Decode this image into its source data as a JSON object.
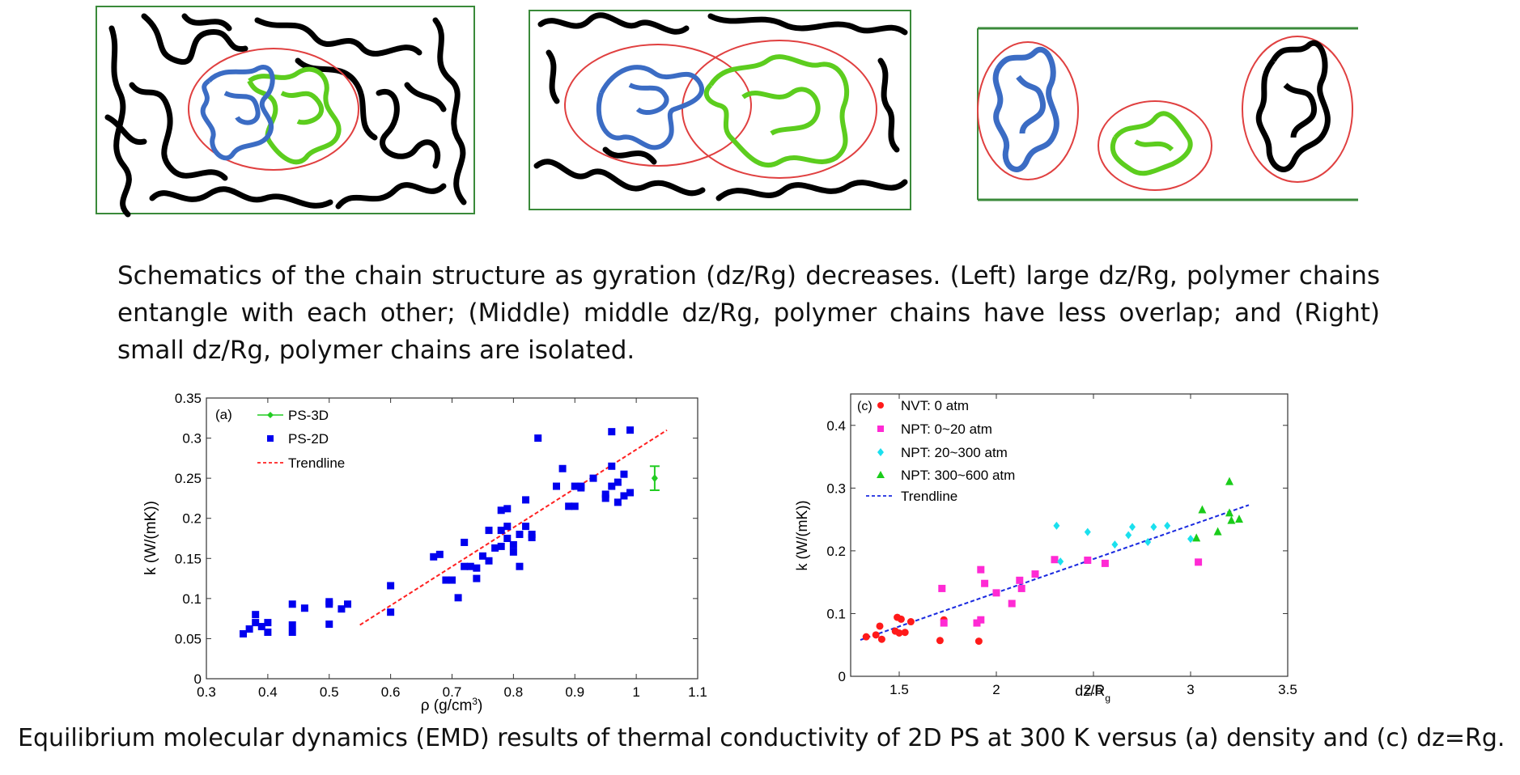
{
  "schematic": {
    "captions": {
      "top": "Schematics of the chain structure as gyration (dz/Rg) decreases. (Left) large dz/Rg, polymer chains entangle with each other; (Middle) middle dz/Rg, polymer chains have less overlap; and (Right) small dz/Rg, polymer chains are isolated.",
      "bottom": "Equilibrium molecular dynamics (EMD) results of thermal conductivity of 2D PS at 300 K versus (a) density and (c) dz=Rg."
    },
    "colors": {
      "box": "#3a8a3a",
      "ellipse": "#e04040",
      "blue_chain": "#3b6cc4",
      "green_chain": "#5ccd1e",
      "black_chain": "#000000"
    }
  },
  "chart_data": [
    {
      "type": "scatter",
      "panel_label": "(a)",
      "xlabel": "ρ (g/cm³)",
      "ylabel": "k (W/(mK))",
      "xlim": [
        0.3,
        1.1
      ],
      "ylim": [
        0,
        0.35
      ],
      "xticks": [
        "0.3",
        "0.4",
        "0.5",
        "0.6",
        "0.7",
        "0.8",
        "0.9",
        "1",
        "1.1"
      ],
      "yticks": [
        "0",
        "0.05",
        "0.1",
        "0.15",
        "0.2",
        "0.25",
        "0.3",
        "0.35"
      ],
      "legend_position": "top-left",
      "legend": [
        "PS-3D",
        "PS-2D",
        "Trendline"
      ],
      "series": [
        {
          "name": "PS-3D",
          "color": "#22cc22",
          "marker": "diamond-errorbar",
          "points": [
            [
              1.03,
              0.25
            ]
          ],
          "error": [
            0.015
          ]
        },
        {
          "name": "PS-2D",
          "color": "#0000ee",
          "marker": "square",
          "points": [
            [
              0.36,
              0.056
            ],
            [
              0.37,
              0.062
            ],
            [
              0.38,
              0.07
            ],
            [
              0.38,
              0.08
            ],
            [
              0.39,
              0.065
            ],
            [
              0.4,
              0.058
            ],
            [
              0.4,
              0.07
            ],
            [
              0.44,
              0.058
            ],
            [
              0.44,
              0.067
            ],
            [
              0.44,
              0.093
            ],
            [
              0.46,
              0.088
            ],
            [
              0.5,
              0.068
            ],
            [
              0.5,
              0.093
            ],
            [
              0.5,
              0.096
            ],
            [
              0.52,
              0.087
            ],
            [
              0.53,
              0.093
            ],
            [
              0.6,
              0.083
            ],
            [
              0.6,
              0.116
            ],
            [
              0.67,
              0.152
            ],
            [
              0.68,
              0.155
            ],
            [
              0.69,
              0.123
            ],
            [
              0.7,
              0.123
            ],
            [
              0.71,
              0.101
            ],
            [
              0.72,
              0.14
            ],
            [
              0.72,
              0.17
            ],
            [
              0.73,
              0.14
            ],
            [
              0.74,
              0.138
            ],
            [
              0.74,
              0.125
            ],
            [
              0.75,
              0.153
            ],
            [
              0.76,
              0.147
            ],
            [
              0.76,
              0.185
            ],
            [
              0.77,
              0.163
            ],
            [
              0.78,
              0.165
            ],
            [
              0.78,
              0.185
            ],
            [
              0.78,
              0.21
            ],
            [
              0.79,
              0.19
            ],
            [
              0.79,
              0.212
            ],
            [
              0.79,
              0.175
            ],
            [
              0.8,
              0.167
            ],
            [
              0.8,
              0.158
            ],
            [
              0.81,
              0.18
            ],
            [
              0.81,
              0.14
            ],
            [
              0.82,
              0.223
            ],
            [
              0.83,
              0.18
            ],
            [
              0.83,
              0.176
            ],
            [
              0.84,
              0.3
            ],
            [
              0.82,
              0.19
            ],
            [
              0.87,
              0.24
            ],
            [
              0.88,
              0.262
            ],
            [
              0.89,
              0.215
            ],
            [
              0.9,
              0.215
            ],
            [
              0.9,
              0.24
            ],
            [
              0.91,
              0.24
            ],
            [
              0.91,
              0.238
            ],
            [
              0.93,
              0.25
            ],
            [
              0.95,
              0.225
            ],
            [
              0.95,
              0.23
            ],
            [
              0.96,
              0.24
            ],
            [
              0.96,
              0.265
            ],
            [
              0.96,
              0.308
            ],
            [
              0.97,
              0.22
            ],
            [
              0.97,
              0.245
            ],
            [
              0.98,
              0.255
            ],
            [
              0.98,
              0.228
            ],
            [
              0.99,
              0.232
            ],
            [
              0.99,
              0.31
            ]
          ]
        },
        {
          "name": "Trendline",
          "color": "#ff2020",
          "style": "dashed",
          "points": [
            [
              0.55,
              0.067
            ],
            [
              1.05,
              0.31
            ]
          ]
        }
      ]
    },
    {
      "type": "scatter",
      "panel_label": "(c)",
      "xlabel": "dz/R",
      "xlabel_subscript": "g",
      "ylabel": "k (W/(mK))",
      "xlim": [
        1.25,
        3.5
      ],
      "ylim": [
        0,
        0.45
      ],
      "xticks": [
        "1.5",
        "2",
        "2.5",
        "3",
        "3.5"
      ],
      "yticks": [
        "0",
        "0.1",
        "0.2",
        "0.3",
        "0.4"
      ],
      "legend_position": "top-left",
      "legend": [
        "NVT: 0 atm",
        "NPT: 0~20 atm",
        "NPT: 20~300 atm",
        "NPT: 300~600 atm",
        "Trendline"
      ],
      "series": [
        {
          "name": "NVT: 0 atm",
          "color": "#ff1a1a",
          "marker": "circle",
          "points": [
            [
              1.33,
              0.063
            ],
            [
              1.38,
              0.066
            ],
            [
              1.4,
              0.08
            ],
            [
              1.41,
              0.059
            ],
            [
              1.48,
              0.072
            ],
            [
              1.49,
              0.094
            ],
            [
              1.5,
              0.069
            ],
            [
              1.51,
              0.091
            ],
            [
              1.53,
              0.07
            ],
            [
              1.56,
              0.087
            ],
            [
              1.71,
              0.057
            ],
            [
              1.73,
              0.09
            ],
            [
              1.91,
              0.056
            ]
          ]
        },
        {
          "name": "NPT: 0~20 atm",
          "color": "#ff2ad4",
          "marker": "square",
          "points": [
            [
              1.72,
              0.14
            ],
            [
              1.73,
              0.085
            ],
            [
              1.9,
              0.085
            ],
            [
              1.92,
              0.09
            ],
            [
              1.92,
              0.17
            ],
            [
              1.94,
              0.148
            ],
            [
              2.0,
              0.133
            ],
            [
              2.08,
              0.116
            ],
            [
              2.12,
              0.153
            ],
            [
              2.13,
              0.14
            ],
            [
              2.2,
              0.163
            ],
            [
              2.3,
              0.186
            ],
            [
              2.47,
              0.185
            ],
            [
              2.56,
              0.18
            ],
            [
              3.04,
              0.182
            ]
          ]
        },
        {
          "name": "NPT: 20~300 atm",
          "color": "#1ae0ee",
          "marker": "diamond",
          "points": [
            [
              2.31,
              0.24
            ],
            [
              2.33,
              0.183
            ],
            [
              2.47,
              0.23
            ],
            [
              2.61,
              0.21
            ],
            [
              2.68,
              0.225
            ],
            [
              2.7,
              0.238
            ],
            [
              2.78,
              0.214
            ],
            [
              2.81,
              0.238
            ],
            [
              2.88,
              0.24
            ],
            [
              3.0,
              0.219
            ]
          ]
        },
        {
          "name": "NPT: 300~600 atm",
          "color": "#1acc1a",
          "marker": "triangle",
          "points": [
            [
              3.03,
              0.22
            ],
            [
              3.06,
              0.265
            ],
            [
              3.14,
              0.23
            ],
            [
              3.2,
              0.31
            ],
            [
              3.2,
              0.26
            ],
            [
              3.21,
              0.248
            ],
            [
              3.25,
              0.25
            ]
          ]
        },
        {
          "name": "Trendline",
          "color": "#1a2ae0",
          "style": "dashed",
          "points": [
            [
              1.3,
              0.058
            ],
            [
              3.3,
              0.273
            ]
          ]
        }
      ]
    }
  ]
}
